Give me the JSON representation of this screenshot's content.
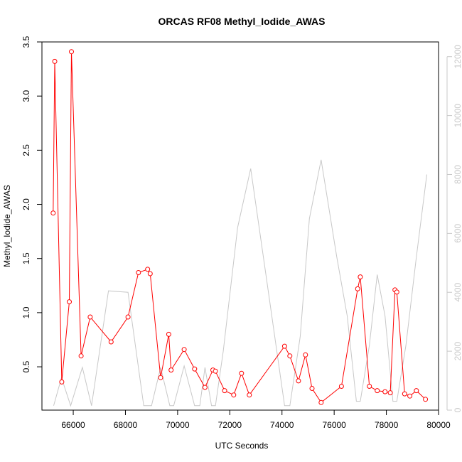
{
  "chart_data": {
    "type": "line",
    "title": "ORCAS RF08 Methyl_Iodide_AWAS",
    "xlabel": "UTC Seconds",
    "ylabel": "Methyl_Iodide_AWAS",
    "xlim": [
      64800,
      80000
    ],
    "ylim": [
      0.1,
      3.5
    ],
    "y2lim": [
      0,
      12500
    ],
    "xticks": [
      66000,
      68000,
      70000,
      72000,
      74000,
      76000,
      78000,
      80000
    ],
    "yticks": [
      0.5,
      1.0,
      1.5,
      2.0,
      2.5,
      3.0,
      3.5
    ],
    "y2ticks": [
      0,
      2000,
      4000,
      6000,
      8000,
      10000,
      12000
    ],
    "grid": false,
    "colors": {
      "primary": "#ff0000",
      "secondary": "#c8c8c8"
    },
    "series": [
      {
        "axis": "left",
        "marker": "circle",
        "x": [
          65230,
          65290,
          65560,
          65850,
          65930,
          66300,
          66650,
          67450,
          68100,
          68500,
          68850,
          68950,
          69350,
          69660,
          69750,
          70250,
          70650,
          71050,
          71350,
          71450,
          71800,
          72150,
          72450,
          72750,
          74100,
          74300,
          74630,
          74900,
          75150,
          75500,
          76280,
          76900,
          77000,
          77350,
          77650,
          77950,
          78150,
          78330,
          78400,
          78700,
          78900,
          79150,
          79500
        ],
        "y": [
          1.92,
          3.32,
          0.36,
          1.1,
          3.41,
          0.6,
          0.96,
          0.73,
          0.96,
          1.37,
          1.4,
          1.36,
          0.4,
          0.8,
          0.47,
          0.66,
          0.48,
          0.31,
          0.47,
          0.46,
          0.28,
          0.24,
          0.44,
          0.24,
          0.69,
          0.6,
          0.37,
          0.61,
          0.3,
          0.17,
          0.32,
          1.22,
          1.33,
          0.32,
          0.28,
          0.27,
          0.26,
          1.21,
          1.19,
          0.25,
          0.23,
          0.28,
          0.2
        ]
      },
      {
        "axis": "right",
        "marker": "none",
        "x": [
          65250,
          65550,
          65900,
          66350,
          66700,
          67350,
          68100,
          68700,
          69000,
          69350,
          69700,
          69850,
          70250,
          70650,
          70850,
          71050,
          71300,
          71450,
          71750,
          72300,
          72800,
          73400,
          74100,
          74300,
          74700,
          75050,
          75500,
          76100,
          76500,
          76850,
          77000,
          77350,
          77650,
          77950,
          78250,
          78400,
          78750,
          79150,
          79550
        ],
        "y": [
          150,
          1100,
          150,
          1450,
          150,
          4050,
          4000,
          150,
          150,
          1450,
          150,
          150,
          1500,
          150,
          150,
          1450,
          150,
          150,
          2000,
          6200,
          8200,
          4500,
          150,
          150,
          2500,
          6500,
          8500,
          5200,
          3200,
          300,
          300,
          2200,
          4600,
          3200,
          300,
          300,
          2200,
          5200,
          8000
        ]
      }
    ]
  }
}
